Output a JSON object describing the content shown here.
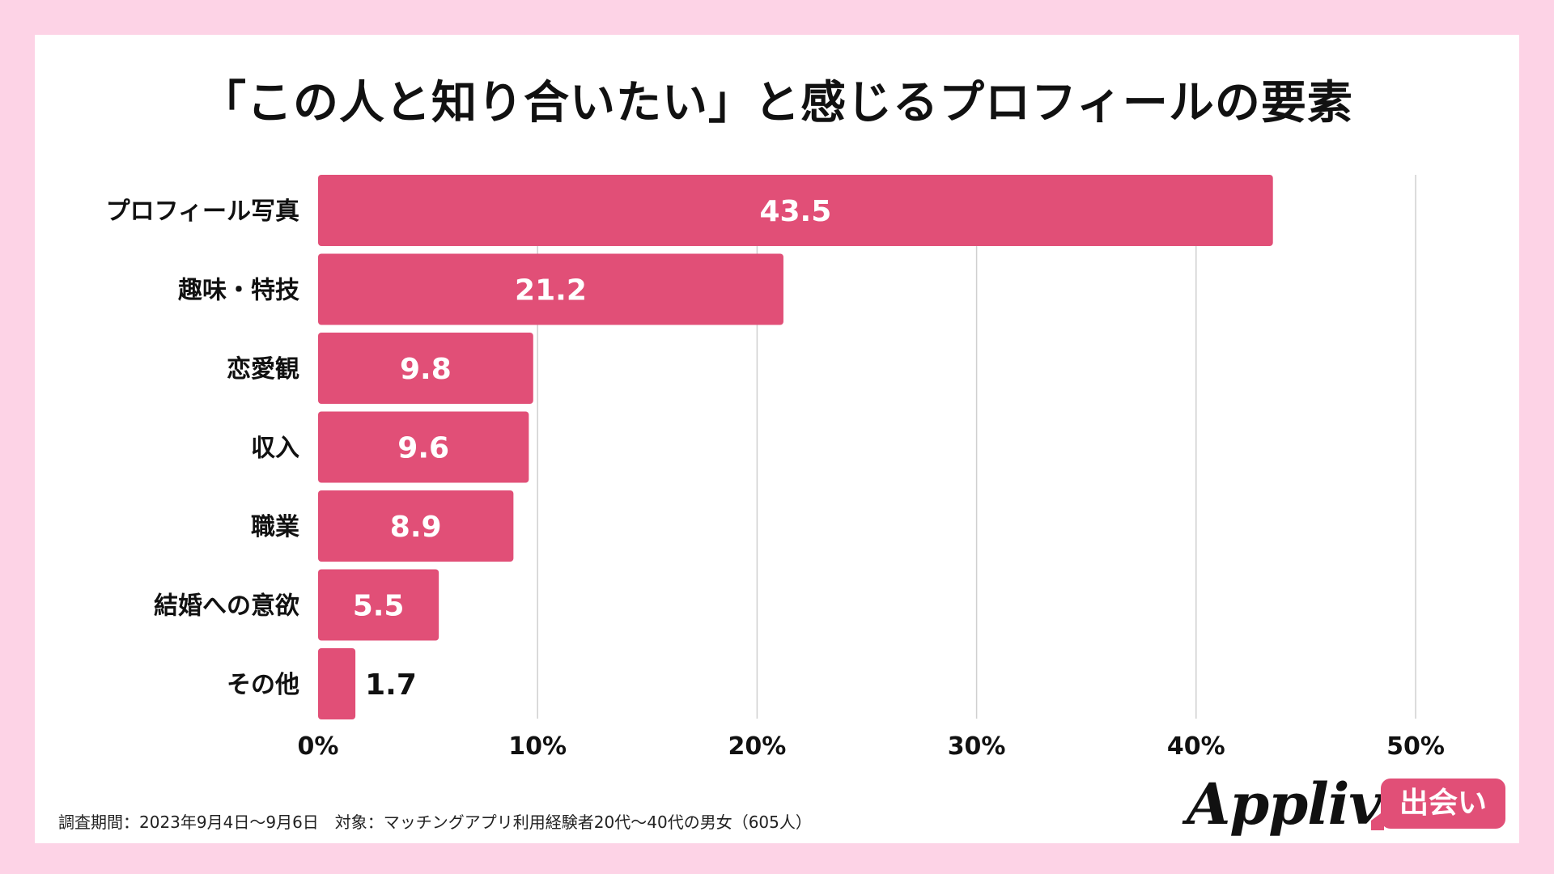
{
  "footnote": "調査期間：2023年9月4日〜9月6日　対象：マッチングアプリ利用経験者20代〜40代の男女（605人）",
  "logo": {
    "name": "Appliv",
    "badge": "出会い"
  },
  "colors": {
    "bar": "#e14f77",
    "grid": "#d0d0d0",
    "background": "#fdd3e6"
  },
  "chart_data": {
    "type": "bar",
    "orientation": "horizontal",
    "title": "「この人と知り合いたい」と感じるプロフィールの要素",
    "categories": [
      "プロフィール写真",
      "趣味・特技",
      "恋愛観",
      "収入",
      "職業",
      "結婚への意欲",
      "その他"
    ],
    "values": [
      43.5,
      21.2,
      9.8,
      9.6,
      8.9,
      5.5,
      1.7
    ],
    "xlim": [
      0,
      50
    ],
    "xticks": [
      "0%",
      "10%",
      "20%",
      "30%",
      "40%",
      "50%"
    ],
    "grid": true
  }
}
